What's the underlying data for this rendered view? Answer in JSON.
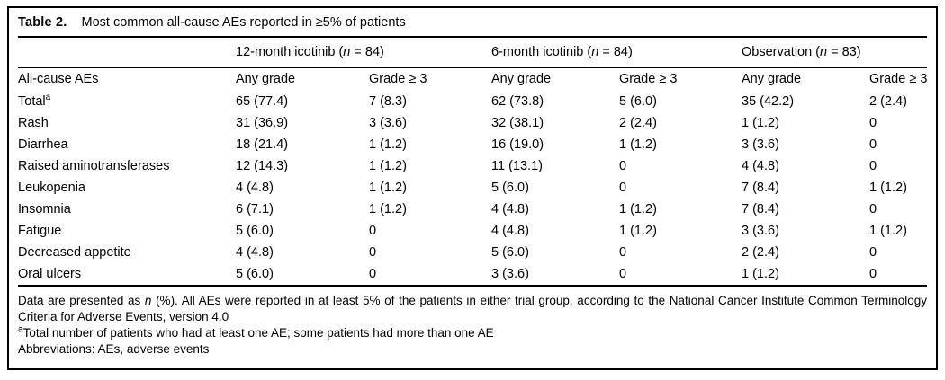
{
  "table": {
    "label": "Table 2.",
    "title": "Most common all-cause AEs reported in ≥5% of patients",
    "groups": [
      {
        "prefix": "12-month icotinib (",
        "n_var": "n",
        "suffix": " = 84)"
      },
      {
        "prefix": "6-month icotinib (",
        "n_var": "n",
        "suffix": " = 84)"
      },
      {
        "prefix": "Observation (",
        "n_var": "n",
        "suffix": " = 83)"
      }
    ],
    "row_header": "All-cause AEs",
    "col_headers": [
      "Any grade",
      "Grade ≥ 3",
      "Any grade",
      "Grade ≥ 3",
      "Any grade",
      "Grade ≥ 3"
    ],
    "rows": [
      {
        "label": "Total",
        "sup": "a",
        "values": [
          "65 (77.4)",
          "7 (8.3)",
          "62 (73.8)",
          "5 (6.0)",
          "35 (42.2)",
          "2 (2.4)"
        ]
      },
      {
        "label": "Rash",
        "values": [
          "31 (36.9)",
          "3 (3.6)",
          "32 (38.1)",
          "2 (2.4)",
          "1 (1.2)",
          "0"
        ]
      },
      {
        "label": "Diarrhea",
        "values": [
          "18 (21.4)",
          "1 (1.2)",
          "16 (19.0)",
          "1 (1.2)",
          "3 (3.6)",
          "0"
        ]
      },
      {
        "label": "Raised aminotransferases",
        "values": [
          "12 (14.3)",
          "1 (1.2)",
          "11 (13.1)",
          "0",
          "4 (4.8)",
          "0"
        ]
      },
      {
        "label": "Leukopenia",
        "values": [
          "4 (4.8)",
          "1 (1.2)",
          "5 (6.0)",
          "0",
          "7 (8.4)",
          "1 (1.2)"
        ]
      },
      {
        "label": "Insomnia",
        "values": [
          "6 (7.1)",
          "1 (1.2)",
          "4 (4.8)",
          "1 (1.2)",
          "7 (8.4)",
          "0"
        ]
      },
      {
        "label": "Fatigue",
        "values": [
          "5 (6.0)",
          "0",
          "4 (4.8)",
          "1 (1.2)",
          "3 (3.6)",
          "1 (1.2)"
        ]
      },
      {
        "label": "Decreased appetite",
        "values": [
          "4 (4.8)",
          "0",
          "5 (6.0)",
          "0",
          "2 (2.4)",
          "0"
        ]
      },
      {
        "label": "Oral ulcers",
        "values": [
          "5 (6.0)",
          "0",
          "3 (3.6)",
          "0",
          "1 (1.2)",
          "0"
        ]
      }
    ],
    "footnotes": {
      "data_pre": "Data are presented as ",
      "data_n": "n",
      "data_post": " (%). All AEs were reported in at least 5% of the patients in either trial group, according to the National Cancer Institute Common Terminology Criteria for Adverse Events, version 4.0",
      "total_sup": "a",
      "total_text": "Total number of patients who had at least one AE; some patients had more than one AE",
      "abbreviations": "Abbreviations: AEs, adverse events"
    }
  }
}
